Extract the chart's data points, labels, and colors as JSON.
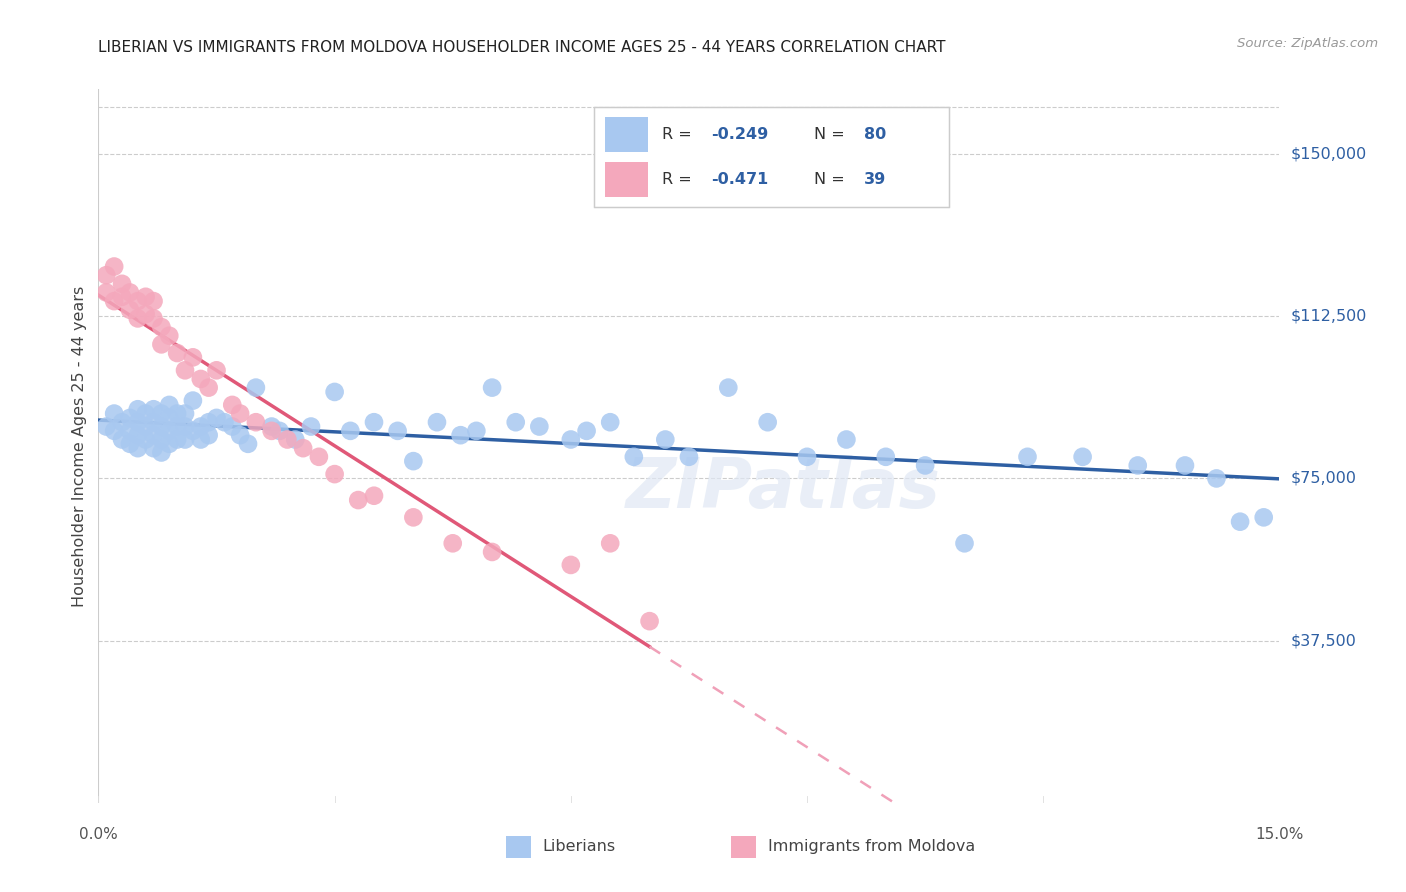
{
  "title": "LIBERIAN VS IMMIGRANTS FROM MOLDOVA HOUSEHOLDER INCOME AGES 25 - 44 YEARS CORRELATION CHART",
  "source_text": "Source: ZipAtlas.com",
  "ylabel": "Householder Income Ages 25 - 44 years",
  "ytick_labels": [
    "$37,500",
    "$75,000",
    "$112,500",
    "$150,000"
  ],
  "ytick_values": [
    37500,
    75000,
    112500,
    150000
  ],
  "ymin": 0,
  "ymax": 165000,
  "xmin": 0.0,
  "xmax": 0.15,
  "legend_blue_R": "-0.249",
  "legend_blue_N": "80",
  "legend_pink_R": "-0.471",
  "legend_pink_N": "39",
  "blue_color": "#A8C8F0",
  "pink_color": "#F4A8BC",
  "blue_line_color": "#2E5FA3",
  "pink_line_color": "#E05878",
  "pink_dash_color": "#F0A0B8",
  "legend_text_color": "#2E5FA3",
  "watermark": "ZIPatlas",
  "blue_scatter_x": [
    0.001,
    0.002,
    0.002,
    0.003,
    0.003,
    0.004,
    0.004,
    0.004,
    0.005,
    0.005,
    0.005,
    0.005,
    0.006,
    0.006,
    0.006,
    0.007,
    0.007,
    0.007,
    0.007,
    0.008,
    0.008,
    0.008,
    0.008,
    0.009,
    0.009,
    0.009,
    0.009,
    0.01,
    0.01,
    0.01,
    0.011,
    0.011,
    0.011,
    0.012,
    0.012,
    0.013,
    0.013,
    0.014,
    0.014,
    0.015,
    0.016,
    0.017,
    0.018,
    0.019,
    0.02,
    0.022,
    0.023,
    0.025,
    0.027,
    0.03,
    0.032,
    0.035,
    0.038,
    0.04,
    0.043,
    0.046,
    0.048,
    0.05,
    0.053,
    0.056,
    0.06,
    0.062,
    0.065,
    0.068,
    0.072,
    0.075,
    0.08,
    0.085,
    0.09,
    0.095,
    0.1,
    0.105,
    0.11,
    0.118,
    0.125,
    0.132,
    0.138,
    0.142,
    0.145,
    0.148
  ],
  "blue_scatter_y": [
    87000,
    90000,
    86000,
    88000,
    84000,
    89000,
    86000,
    83000,
    91000,
    88000,
    85000,
    82000,
    90000,
    87000,
    84000,
    91000,
    88000,
    85000,
    82000,
    90000,
    87000,
    84000,
    81000,
    92000,
    89000,
    86000,
    83000,
    90000,
    87000,
    84000,
    90000,
    87000,
    84000,
    93000,
    86000,
    87000,
    84000,
    88000,
    85000,
    89000,
    88000,
    87000,
    85000,
    83000,
    96000,
    87000,
    86000,
    84000,
    87000,
    95000,
    86000,
    88000,
    86000,
    79000,
    88000,
    85000,
    86000,
    96000,
    88000,
    87000,
    84000,
    86000,
    88000,
    80000,
    84000,
    80000,
    96000,
    88000,
    80000,
    84000,
    80000,
    78000,
    60000,
    80000,
    80000,
    78000,
    78000,
    75000,
    65000,
    66000
  ],
  "pink_scatter_x": [
    0.001,
    0.001,
    0.002,
    0.002,
    0.003,
    0.003,
    0.004,
    0.004,
    0.005,
    0.005,
    0.006,
    0.006,
    0.007,
    0.007,
    0.008,
    0.008,
    0.009,
    0.01,
    0.011,
    0.012,
    0.013,
    0.014,
    0.015,
    0.017,
    0.018,
    0.02,
    0.022,
    0.024,
    0.026,
    0.028,
    0.03,
    0.033,
    0.035,
    0.04,
    0.045,
    0.05,
    0.06,
    0.065,
    0.07
  ],
  "pink_scatter_y": [
    122000,
    118000,
    124000,
    116000,
    120000,
    117000,
    118000,
    114000,
    116000,
    112000,
    117000,
    113000,
    116000,
    112000,
    110000,
    106000,
    108000,
    104000,
    100000,
    103000,
    98000,
    96000,
    100000,
    92000,
    90000,
    88000,
    86000,
    84000,
    82000,
    80000,
    76000,
    70000,
    71000,
    66000,
    60000,
    58000,
    55000,
    60000,
    42000
  ]
}
